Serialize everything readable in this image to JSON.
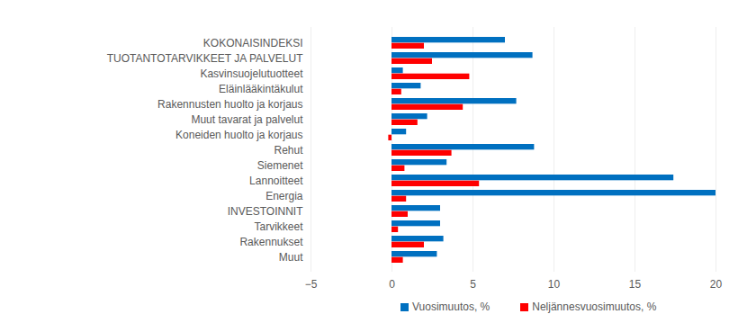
{
  "chart_data": {
    "type": "bar",
    "orientation": "horizontal",
    "grid": true,
    "legend": "bottom",
    "categories": [
      "KOKONAISINDEKSI",
      "TUOTANTOTARVIKKEET JA PALVELUT",
      "Kasvinsuojelutuotteet",
      "Eläinlääkintäkulut",
      "Rakennusten huolto ja korjaus",
      "Muut tavarat ja palvelut",
      "Koneiden huolto ja korjaus",
      "Rehut",
      "Siemenet",
      "Lannoitteet",
      "Energia",
      "INVESTOINNIT",
      "Tarvikkeet",
      "Rakennukset",
      "Muut"
    ],
    "series": [
      {
        "name": "Vuosimuutos, %",
        "color": "#0070c0",
        "values": [
          7.0,
          8.7,
          0.7,
          1.8,
          7.7,
          2.2,
          0.9,
          8.8,
          3.4,
          17.4,
          20.0,
          3.0,
          3.0,
          3.2,
          2.8
        ]
      },
      {
        "name": "Neljännesvuosimuutos, %",
        "color": "#ff0000",
        "values": [
          2.0,
          2.5,
          4.8,
          0.6,
          4.4,
          1.6,
          -0.2,
          3.7,
          0.8,
          5.4,
          0.9,
          1.0,
          0.4,
          2.0,
          0.7
        ]
      }
    ],
    "xlim": [
      -5,
      20
    ],
    "xticks": [
      -5,
      0,
      5,
      10,
      15,
      20
    ]
  }
}
